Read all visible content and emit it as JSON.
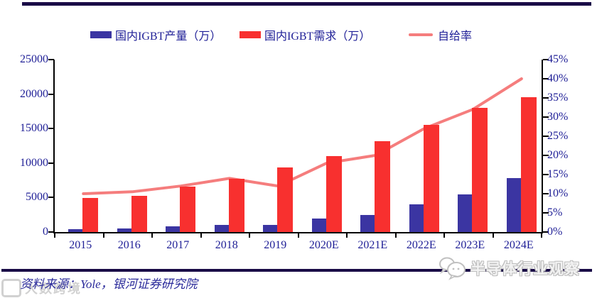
{
  "colors": {
    "production_bar": "#3b35a2",
    "demand_bar": "#f8302f",
    "rate_line": "#f57d7d",
    "axis_text": "#1e1e96",
    "axis_line": "#000000",
    "rule": "#190a46"
  },
  "legend": {
    "items": [
      {
        "label": "国内IGBT产量（万）",
        "swatch": "blue-bar"
      },
      {
        "label": "国内IGBT需求（万）",
        "swatch": "red-bar"
      },
      {
        "label": "自给率",
        "swatch": "pink-line"
      }
    ]
  },
  "chart_data": {
    "type": "bar",
    "title": "",
    "categories": [
      "2015",
      "2016",
      "2017",
      "2018",
      "2019",
      "2020E",
      "2021E",
      "2022E",
      "2023E",
      "2024E"
    ],
    "series": [
      {
        "name": "国内IGBT产量（万）",
        "type": "bar",
        "axis": "left",
        "color": "#3b35a2",
        "values": [
          400,
          550,
          800,
          1000,
          1050,
          2000,
          2500,
          4000,
          5500,
          7800
        ]
      },
      {
        "name": "国内IGBT需求（万）",
        "type": "bar",
        "axis": "left",
        "color": "#f8302f",
        "values": [
          4900,
          5300,
          6600,
          7700,
          9400,
          11000,
          13200,
          15500,
          18000,
          19600
        ]
      },
      {
        "name": "自给率",
        "type": "line",
        "axis": "right",
        "color": "#f57d7d",
        "unit": "%",
        "values": [
          10,
          10.5,
          12,
          14,
          12,
          18,
          20,
          27,
          32,
          40
        ]
      }
    ],
    "left_axis": {
      "min": 0,
      "max": 25000,
      "step": 5000,
      "tick_labels": [
        "0",
        "5000",
        "10000",
        "15000",
        "20000",
        "25000"
      ]
    },
    "right_axis": {
      "min": 0,
      "max": 45,
      "step": 5,
      "tick_labels": [
        "0%",
        "5%",
        "10%",
        "15%",
        "20%",
        "25%",
        "30%",
        "35%",
        "40%",
        "45%"
      ]
    },
    "grid": false,
    "legend_position": "top"
  },
  "footer": {
    "source": "资料来源：Yole，银河证券研究院"
  },
  "watermarks": {
    "bottom_right": {
      "icon": "wechat-icon",
      "text": "半导体行业观察"
    },
    "bottom_left": {
      "logo": "rounded-square-logo",
      "text": "大数跨境"
    }
  }
}
